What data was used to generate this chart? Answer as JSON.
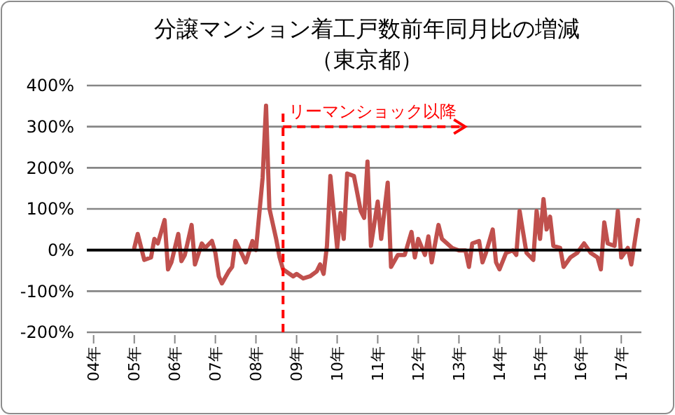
{
  "chart_data": {
    "type": "line",
    "title": "分譲マンション着工戸数前年同月比の増減",
    "subtitle": "（東京都）",
    "x": [
      "2005-01",
      "2005-02",
      "2005-04",
      "2005-06",
      "2005-07",
      "2005-08",
      "2005-10",
      "2005-11",
      "2005-12",
      "2006-02",
      "2006-03",
      "2006-04",
      "2006-06",
      "2006-07",
      "2006-09",
      "2006-10",
      "2006-12",
      "2007-01",
      "2007-02",
      "2007-03",
      "2007-05",
      "2007-06",
      "2007-07",
      "2007-09",
      "2007-10",
      "2007-12",
      "2008-01",
      "2008-03",
      "2008-04",
      "2008-05",
      "2008-07",
      "2008-08",
      "2008-09",
      "2008-12",
      "2009-01",
      "2009-03",
      "2009-05",
      "2009-07",
      "2009-08",
      "2009-09",
      "2009-10",
      "2009-11",
      "2010-01",
      "2010-02",
      "2010-03",
      "2010-04",
      "2010-06",
      "2010-08",
      "2010-09",
      "2010-10",
      "2010-11",
      "2011-01",
      "2011-02",
      "2011-04",
      "2011-05",
      "2011-07",
      "2011-09",
      "2011-11",
      "2011-12",
      "2012-01",
      "2012-03",
      "2012-04",
      "2012-05",
      "2012-07",
      "2012-08",
      "2012-11",
      "2013-01",
      "2013-03",
      "2013-04",
      "2013-05",
      "2013-07",
      "2013-08",
      "2013-09",
      "2013-11",
      "2013-12",
      "2014-01",
      "2014-03",
      "2014-05",
      "2014-06",
      "2014-07",
      "2014-09",
      "2014-11",
      "2014-12",
      "2015-01",
      "2015-02",
      "2015-03",
      "2015-04",
      "2015-05",
      "2015-07",
      "2015-08",
      "2015-10",
      "2015-12",
      "2016-02",
      "2016-03",
      "2016-04",
      "2016-06",
      "2016-07",
      "2016-08",
      "2016-09",
      "2016-11",
      "2016-12",
      "2017-01",
      "2017-03",
      "2017-04",
      "2017-06"
    ],
    "series": [
      {
        "color": "#c0504d",
        "values": [
          5,
          39,
          -24,
          -18,
          27,
          16,
          73,
          -47,
          -30,
          39,
          -27,
          -12,
          61,
          -35,
          16,
          5,
          22,
          -7,
          -64,
          -81,
          -52,
          -41,
          22,
          -12,
          -30,
          22,
          0,
          175,
          351,
          101,
          27,
          -18,
          -47,
          -64,
          -58,
          -69,
          -64,
          -52,
          -35,
          -58,
          10,
          180,
          5,
          90,
          27,
          186,
          180,
          95,
          78,
          215,
          10,
          118,
          27,
          164,
          -41,
          -12,
          -12,
          44,
          -18,
          27,
          -12,
          33,
          -30,
          61,
          27,
          5,
          -1,
          -1,
          -41,
          16,
          22,
          -30,
          -7,
          50,
          -30,
          -47,
          -7,
          -1,
          -12,
          95,
          -7,
          -24,
          95,
          27,
          124,
          50,
          81,
          10,
          5,
          -41,
          -18,
          -7,
          16,
          5,
          -7,
          -18,
          -47,
          67,
          16,
          10,
          95,
          -18,
          5,
          -35,
          73
        ]
      }
    ],
    "xlim": [
      "2003-11",
      "2017-07"
    ],
    "xticks": [
      {
        "value": "2004-01",
        "label": "04年"
      },
      {
        "value": "2005-01",
        "label": "05年"
      },
      {
        "value": "2006-01",
        "label": "06年"
      },
      {
        "value": "2007-01",
        "label": "07年"
      },
      {
        "value": "2008-01",
        "label": "08年"
      },
      {
        "value": "2009-01",
        "label": "09年"
      },
      {
        "value": "2010-01",
        "label": "10年"
      },
      {
        "value": "2011-01",
        "label": "11年"
      },
      {
        "value": "2012-01",
        "label": "12年"
      },
      {
        "value": "2013-01",
        "label": "13年"
      },
      {
        "value": "2014-01",
        "label": "14年"
      },
      {
        "value": "2015-01",
        "label": "15年"
      },
      {
        "value": "2016-01",
        "label": "16年"
      },
      {
        "value": "2017-01",
        "label": "17年"
      }
    ],
    "ylim": [
      -200,
      400
    ],
    "yticks": [
      {
        "value": -200,
        "label": "-200%"
      },
      {
        "value": -100,
        "label": "-100%"
      },
      {
        "value": 0,
        "label": "0%"
      },
      {
        "value": 100,
        "label": "100%"
      },
      {
        "value": 200,
        "label": "200%"
      },
      {
        "value": 300,
        "label": "300%"
      },
      {
        "value": 400,
        "label": "400%"
      }
    ],
    "grid": "y",
    "marker": "none",
    "line_style": "solid",
    "ref_lines": [
      {
        "axis": "x",
        "value": "2008-09",
        "color": "#ff0000",
        "line_style": "dashed"
      }
    ],
    "annotations": [
      {
        "text": "リーマンショック以降",
        "x": "2008-09",
        "y": 300
      }
    ]
  }
}
